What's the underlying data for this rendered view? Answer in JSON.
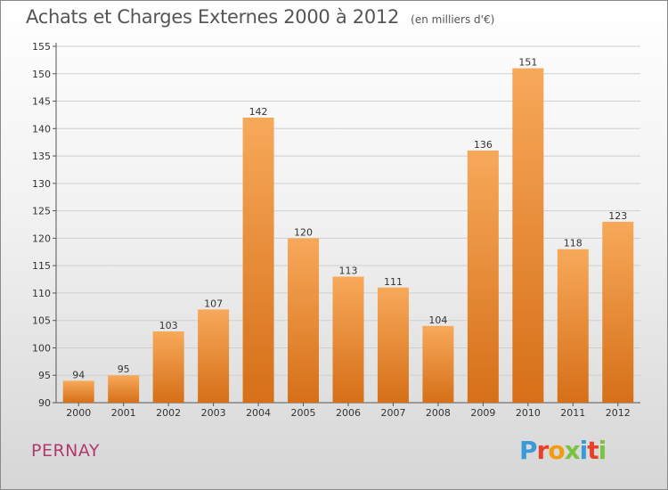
{
  "title": "Achats et Charges Externes 2000 à 2012",
  "unit": "(en milliers d'€)",
  "commune": "PERNAY",
  "logo": {
    "letters": [
      "P",
      "r",
      "o",
      "x",
      "i",
      "t",
      "i"
    ],
    "colors": [
      "#3a9ad9",
      "#e8402a",
      "#f39c12",
      "#7cc242",
      "#3a9ad9",
      "#e8402a",
      "#7cc242"
    ]
  },
  "colors": {
    "bar_light": "#f7a95a",
    "bar_dark": "#d66f18",
    "axis": "#555555",
    "grid": "#cfcfcf"
  },
  "chart_data": {
    "type": "bar",
    "categories": [
      "2000",
      "2001",
      "2002",
      "2003",
      "2004",
      "2005",
      "2006",
      "2007",
      "2008",
      "2009",
      "2010",
      "2011",
      "2012"
    ],
    "values": [
      94,
      95,
      103,
      107,
      142,
      120,
      113,
      111,
      104,
      136,
      151,
      118,
      123
    ],
    "ylim": [
      90,
      155
    ],
    "yticks": [
      90,
      95,
      100,
      105,
      110,
      115,
      120,
      125,
      130,
      135,
      140,
      145,
      150,
      155
    ],
    "grid": true
  }
}
